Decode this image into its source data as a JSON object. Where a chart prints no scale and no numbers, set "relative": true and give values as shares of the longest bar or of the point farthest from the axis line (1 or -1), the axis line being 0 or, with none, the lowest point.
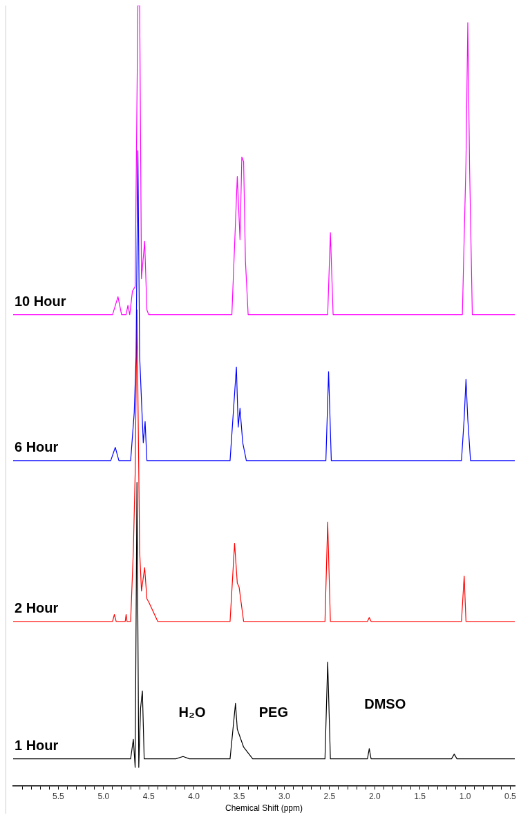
{
  "chart_data": {
    "type": "line",
    "relative": true,
    "xlabel": "Chemical Shift (ppm)",
    "xlim": [
      6.0,
      0.45
    ],
    "xticks": [
      {
        "value": 5.9,
        "label": null
      },
      {
        "value": 5.8,
        "label": null
      },
      {
        "value": 5.7,
        "label": null
      },
      {
        "value": 5.6,
        "label": null
      },
      5.5,
      {
        "value": 5.4,
        "label": null
      },
      {
        "value": 5.3,
        "label": null
      },
      {
        "value": 5.2,
        "label": null
      },
      {
        "value": 5.1,
        "label": null
      },
      {
        "value": 5.0,
        "label": "5.0"
      },
      {
        "value": 4.9,
        "label": null
      },
      {
        "value": 4.8,
        "label": null
      },
      {
        "value": 4.7,
        "label": null
      },
      {
        "value": 4.6,
        "label": null
      },
      4.5,
      {
        "value": 4.4,
        "label": null
      },
      {
        "value": 4.3,
        "label": null
      },
      {
        "value": 4.2,
        "label": null
      },
      {
        "value": 4.1,
        "label": null
      },
      {
        "value": 4.0,
        "label": "4.0"
      },
      {
        "value": 3.9,
        "label": null
      },
      {
        "value": 3.8,
        "label": null
      },
      {
        "value": 3.7,
        "label": null
      },
      {
        "value": 3.6,
        "label": null
      },
      3.5,
      {
        "value": 3.4,
        "label": null
      },
      {
        "value": 3.3,
        "label": null
      },
      {
        "value": 3.2,
        "label": null
      },
      {
        "value": 3.1,
        "label": null
      },
      {
        "value": 3.0,
        "label": "3.0"
      },
      {
        "value": 2.9,
        "label": null
      },
      {
        "value": 2.8,
        "label": null
      },
      {
        "value": 2.7,
        "label": null
      },
      {
        "value": 2.6,
        "label": null
      },
      2.5,
      {
        "value": 2.4,
        "label": null
      },
      {
        "value": 2.3,
        "label": null
      },
      {
        "value": 2.2,
        "label": null
      },
      {
        "value": 2.1,
        "label": null
      },
      {
        "value": 2.0,
        "label": "2.0"
      },
      {
        "value": 1.9,
        "label": null
      },
      {
        "value": 1.8,
        "label": null
      },
      {
        "value": 1.7,
        "label": null
      },
      {
        "value": 1.6,
        "label": null
      },
      1.5,
      {
        "value": 1.4,
        "label": null
      },
      {
        "value": 1.3,
        "label": null
      },
      {
        "value": 1.2,
        "label": null
      },
      {
        "value": 1.1,
        "label": null
      },
      {
        "value": 1.0,
        "label": "1.0"
      },
      {
        "value": 0.9,
        "label": null
      },
      {
        "value": 0.8,
        "label": null
      },
      {
        "value": 0.7,
        "label": null
      },
      {
        "value": 0.6,
        "label": null
      },
      0.5
    ],
    "legend": false,
    "marker": "none",
    "series": [
      {
        "name": "10 Hour",
        "color": "#ff00ff",
        "x": [
          6.0,
          4.9,
          4.84,
          4.8,
          4.75,
          4.73,
          4.71,
          4.68,
          4.65,
          4.62,
          4.6,
          4.58,
          4.545,
          4.52,
          4.5,
          3.58,
          3.52,
          3.49,
          3.47,
          3.45,
          3.43,
          3.4,
          2.52,
          2.49,
          2.46,
          1.03,
          0.99,
          0.97,
          0.95,
          0.92,
          0.45
        ],
        "values": [
          0.604,
          0.604,
          0.627,
          0.604,
          0.604,
          0.616,
          0.604,
          0.634,
          0.64,
          1.0,
          1.0,
          0.65,
          0.698,
          0.61,
          0.604,
          0.604,
          0.781,
          0.7,
          0.806,
          0.8,
          0.673,
          0.604,
          0.604,
          0.709,
          0.604,
          0.604,
          0.8,
          0.978,
          0.792,
          0.604,
          0.604
        ]
      },
      {
        "name": "6 Hour",
        "color": "#0000ff",
        "x": [
          6.0,
          4.92,
          4.87,
          4.83,
          4.7,
          4.66,
          4.64,
          4.62,
          4.6,
          4.58,
          4.56,
          4.54,
          4.52,
          3.6,
          3.53,
          3.51,
          3.49,
          3.46,
          3.42,
          2.54,
          2.51,
          2.48,
          1.04,
          1.01,
          0.99,
          0.97,
          0.94,
          0.45
        ],
        "values": [
          0.417,
          0.417,
          0.434,
          0.417,
          0.417,
          0.479,
          0.55,
          0.814,
          0.55,
          0.494,
          0.44,
          0.467,
          0.417,
          0.417,
          0.537,
          0.46,
          0.484,
          0.44,
          0.417,
          0.417,
          0.531,
          0.417,
          0.417,
          0.471,
          0.521,
          0.47,
          0.417,
          0.417
        ]
      },
      {
        "name": "2 Hour",
        "color": "#ff0000",
        "x": [
          6.0,
          4.9,
          4.88,
          4.86,
          4.76,
          4.75,
          4.74,
          4.7,
          4.67,
          4.65,
          4.63,
          4.6,
          4.58,
          4.545,
          4.52,
          4.5,
          4.4,
          3.6,
          3.55,
          3.52,
          3.5,
          3.45,
          2.55,
          2.52,
          2.49,
          2.08,
          2.06,
          2.04,
          1.04,
          1.01,
          0.99,
          0.45
        ],
        "values": [
          0.211,
          0.211,
          0.22,
          0.211,
          0.211,
          0.22,
          0.211,
          0.211,
          0.302,
          0.4,
          0.61,
          0.3,
          0.25,
          0.28,
          0.24,
          0.236,
          0.211,
          0.211,
          0.311,
          0.26,
          0.255,
          0.211,
          0.211,
          0.338,
          0.211,
          0.211,
          0.216,
          0.211,
          0.211,
          0.269,
          0.211,
          0.211
        ]
      },
      {
        "name": "1 Hour",
        "color": "#000000",
        "x": [
          6.0,
          4.7,
          4.67,
          4.65,
          4.63,
          4.61,
          4.59,
          4.57,
          4.55,
          4.2,
          4.12,
          4.05,
          3.6,
          3.54,
          3.52,
          3.45,
          3.35,
          2.55,
          2.52,
          2.49,
          2.08,
          2.06,
          2.04,
          1.15,
          1.12,
          1.09,
          0.45
        ],
        "values": [
          0.035,
          0.035,
          0.06,
          0.024,
          0.389,
          0.024,
          0.1,
          0.122,
          0.035,
          0.035,
          0.038,
          0.035,
          0.035,
          0.106,
          0.073,
          0.05,
          0.035,
          0.035,
          0.159,
          0.035,
          0.035,
          0.048,
          0.035,
          0.035,
          0.041,
          0.035,
          0.035
        ]
      }
    ],
    "annotations": [
      "H₂O",
      "PEG",
      "DMSO"
    ]
  }
}
